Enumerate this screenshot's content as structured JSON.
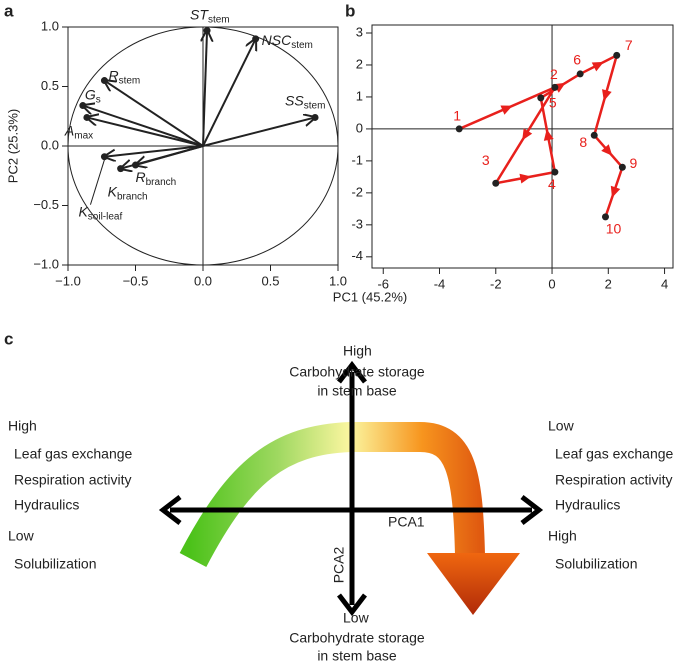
{
  "chart_data": [
    {
      "type": "biplot",
      "panel": "a",
      "xlabel": "PC1 (45.2%)",
      "ylabel": "PC2 (25.3%)",
      "xlim": [
        -1,
        1
      ],
      "ylim": [
        -1,
        1
      ],
      "xticks": [
        {
          "value": -1,
          "label": "−1.0"
        },
        {
          "value": -0.5,
          "label": "−0.5"
        },
        {
          "value": 0,
          "label": "0.0"
        },
        {
          "value": 0.5,
          "label": "0.5"
        },
        {
          "value": 1,
          "label": "1.0"
        }
      ],
      "yticks": [
        {
          "value": -1,
          "label": "−1.0"
        },
        {
          "value": -0.5,
          "label": "−0.5"
        },
        {
          "value": 0,
          "label": "0.0"
        },
        {
          "value": 0.5,
          "label": "0.5"
        },
        {
          "value": 1,
          "label": "1.0"
        }
      ],
      "circle": true,
      "zero_lines": true,
      "color": "#222222",
      "variables": [
        {
          "name": "ST",
          "sub": "stem",
          "x": 0.03,
          "y": 0.97
        },
        {
          "name": "NSC",
          "sub": "stem",
          "x": 0.39,
          "y": 0.9
        },
        {
          "name": "SS",
          "sub": "stem",
          "x": 0.83,
          "y": 0.24
        },
        {
          "name": "R",
          "sub": "stem",
          "x": -0.73,
          "y": 0.55
        },
        {
          "name": "G",
          "sub": "s",
          "x": -0.89,
          "y": 0.34
        },
        {
          "name": "A",
          "sub": "max",
          "x": -0.86,
          "y": 0.24
        },
        {
          "name": "K",
          "sub": "soil-leaf",
          "x": -0.73,
          "y": -0.09
        },
        {
          "name": "K",
          "sub": "branch",
          "x": -0.61,
          "y": -0.19
        },
        {
          "name": "R",
          "sub": "branch",
          "x": -0.5,
          "y": -0.16
        }
      ]
    },
    {
      "type": "trajectory",
      "panel": "b",
      "xlim": [
        -6.4,
        4.3
      ],
      "ylim": [
        -4.35,
        3.25
      ],
      "xticks": [
        -6,
        -4,
        -2,
        0,
        2,
        4
      ],
      "yticks": [
        3,
        2,
        1,
        0,
        -1,
        -2,
        -3,
        -4
      ],
      "zero_lines": true,
      "color": "#e8201c",
      "labels": [
        "1",
        "2",
        "3",
        "4",
        "5",
        "6",
        "7",
        "8",
        "9",
        "10"
      ],
      "x": [
        -3.3,
        0.1,
        -2.0,
        0.1,
        -0.4,
        1.0,
        2.3,
        1.5,
        2.5,
        1.9
      ],
      "y": [
        0,
        1.3,
        -1.7,
        -1.35,
        0.97,
        1.72,
        2.3,
        -0.2,
        -1.2,
        -2.75
      ]
    }
  ],
  "diagram": {
    "panel": "c",
    "x_axis": "PCA1",
    "y_axis": "PCA2",
    "top": [
      "High",
      "Carbohydrate storage",
      "in stem base"
    ],
    "bottom": [
      "Low",
      "Carbohydrate storage",
      "in stem base"
    ],
    "left": [
      "High",
      "Leaf gas exchange",
      "Respiration activity",
      "Hydraulics",
      "Low",
      "Solubilization"
    ],
    "right": [
      "Low",
      "Leaf gas exchange",
      "Respiration activity",
      "Hydraulics",
      "High",
      "Solubilization"
    ]
  }
}
